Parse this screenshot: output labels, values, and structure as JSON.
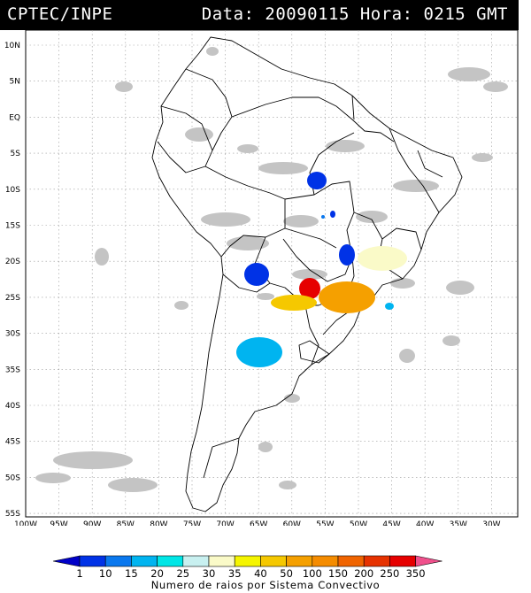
{
  "header": {
    "source": "CPTEC/INPE",
    "datetime": "Data: 20090115 Hora: 0215 GMT"
  },
  "map": {
    "lat_labels": [
      "10N",
      "5N",
      "EQ",
      "5S",
      "10S",
      "15S",
      "20S",
      "25S",
      "30S",
      "35S",
      "40S",
      "45S",
      "50S",
      "55S"
    ],
    "lon_labels": [
      "100W",
      "95W",
      "90W",
      "85W",
      "80W",
      "75W",
      "70W",
      "65W",
      "60W",
      "55W",
      "50W",
      "45W",
      "40W",
      "35W",
      "30W"
    ]
  },
  "legend": {
    "ticks": [
      "1",
      "10",
      "15",
      "20",
      "25",
      "30",
      "35",
      "40",
      "50",
      "100",
      "150",
      "200",
      "250",
      "350"
    ],
    "colors": [
      "#0000c8",
      "#0032e6",
      "#0a78ee",
      "#00b4f0",
      "#00e6e6",
      "#c8f0f0",
      "#fafac8",
      "#f5f500",
      "#f5c800",
      "#f5a000",
      "#f58c00",
      "#f06400",
      "#e63200",
      "#e60000",
      "#f0508c"
    ],
    "caption": "Numero de raios por Sistema Convectivo"
  }
}
